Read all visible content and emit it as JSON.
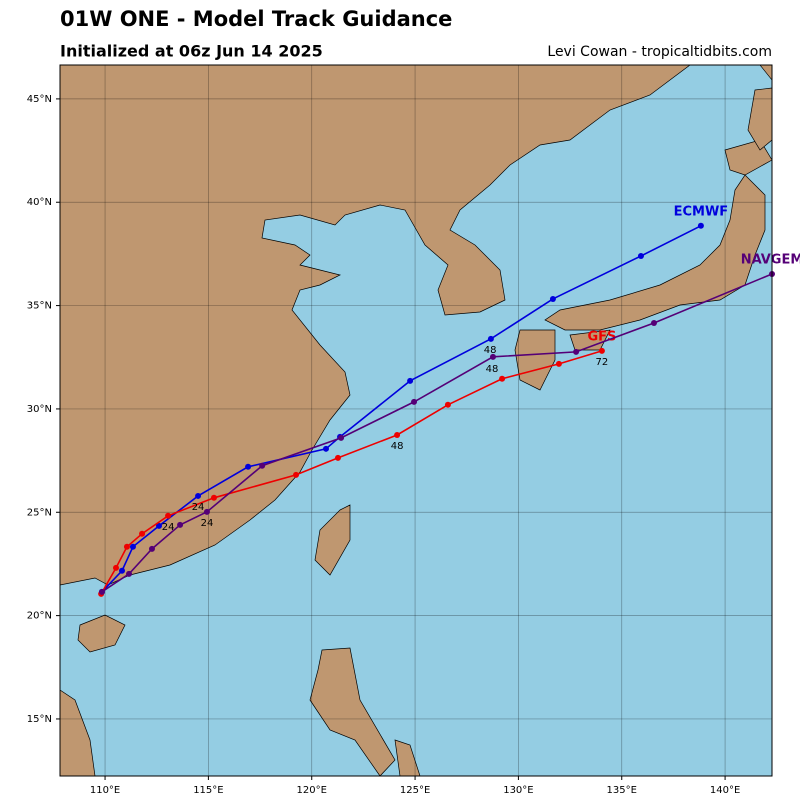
{
  "chart_data": {
    "type": "track",
    "title": "01W ONE - Model Track Guidance",
    "subtitle": "Initialized at 06z Jun 14 2025",
    "credit": "Levi Cowan - tropicaltidbits.com",
    "xlim": [
      107.82,
      142.27
    ],
    "ylim": [
      12.24,
      46.64
    ],
    "xticks": [
      {
        "value": 110,
        "label": "110°E"
      },
      {
        "value": 115,
        "label": "115°E"
      },
      {
        "value": 120,
        "label": "120°E"
      },
      {
        "value": 125,
        "label": "125°E"
      },
      {
        "value": 130,
        "label": "130°E"
      },
      {
        "value": 135,
        "label": "135°E"
      },
      {
        "value": 140,
        "label": "140°E"
      }
    ],
    "yticks": [
      {
        "value": 15,
        "label": "15°N"
      },
      {
        "value": 20,
        "label": "20°N"
      },
      {
        "value": 25,
        "label": "25°N"
      },
      {
        "value": 30,
        "label": "30°N"
      },
      {
        "value": 35,
        "label": "35°N"
      },
      {
        "value": 40,
        "label": "40°N"
      },
      {
        "value": 45,
        "label": "45°N"
      }
    ],
    "grid": true,
    "series": [
      {
        "name": "ECMWF",
        "color": "#0000dd",
        "x": [
          109.85,
          110.82,
          111.35,
          112.61,
          114.5,
          116.92,
          120.69,
          121.37,
          124.76,
          128.67,
          131.67,
          135.93,
          138.83
        ],
        "values": [
          21.15,
          22.17,
          23.33,
          24.34,
          25.79,
          27.2,
          28.07,
          28.65,
          31.36,
          33.39,
          35.32,
          37.4,
          38.86
        ]
      },
      {
        "name": "GFS",
        "color": "#ee0000",
        "x": [
          109.81,
          110.53,
          111.06,
          111.79,
          113.05,
          115.27,
          119.24,
          121.27,
          124.13,
          126.59,
          129.21,
          131.96,
          134.04
        ],
        "values": [
          21.05,
          22.31,
          23.33,
          23.96,
          24.83,
          25.7,
          26.81,
          27.63,
          28.74,
          30.2,
          31.46,
          32.18,
          32.81
        ]
      },
      {
        "name": "NAVGEM",
        "color": "#550077",
        "x": [
          109.85,
          111.16,
          112.27,
          113.63,
          114.93,
          117.6,
          121.42,
          124.95,
          128.77,
          132.79,
          136.56,
          142.27
        ],
        "values": [
          21.15,
          22.02,
          23.23,
          24.39,
          25.02,
          27.25,
          28.6,
          30.34,
          32.52,
          32.76,
          34.16,
          36.53
        ]
      }
    ],
    "annotations": [
      {
        "text": "24",
        "x": 114.5,
        "y": 25.26
      },
      {
        "text": "24",
        "x": 113.05,
        "y": 24.29
      },
      {
        "text": "24",
        "x": 114.93,
        "y": 24.49
      },
      {
        "text": "48",
        "x": 128.63,
        "y": 32.86
      },
      {
        "text": "48",
        "x": 128.72,
        "y": 31.94
      },
      {
        "text": "48",
        "x": 124.13,
        "y": 28.21
      },
      {
        "text": "72",
        "x": 134.04,
        "y": 32.28
      }
    ]
  }
}
